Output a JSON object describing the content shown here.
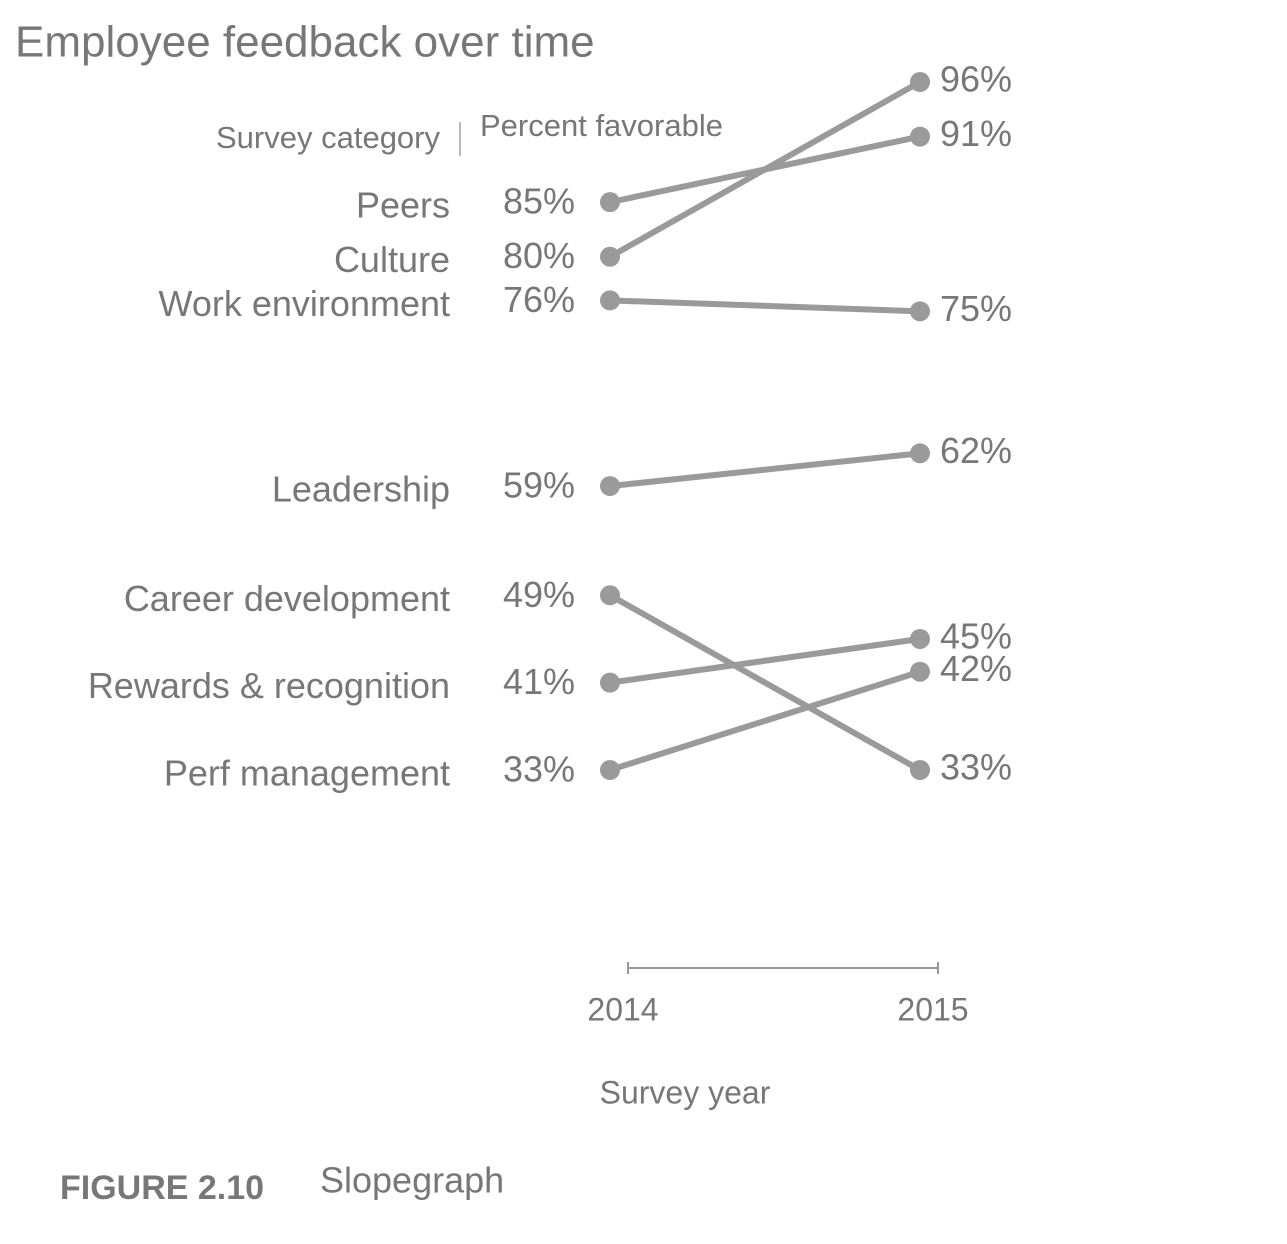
{
  "chart_data": {
    "type": "slope",
    "title": "Employee feedback over time",
    "subtitle_left": "Survey category",
    "subtitle_right": "Percent favorable",
    "x_label": "Survey year",
    "categories": [
      "2014",
      "2015"
    ],
    "color": "#9a9a9a",
    "series": [
      {
        "name": "Peers",
        "values": [
          85,
          91
        ],
        "value_labels": [
          "85%",
          "91%"
        ]
      },
      {
        "name": "Culture",
        "values": [
          80,
          96
        ],
        "value_labels": [
          "80%",
          "96%"
        ]
      },
      {
        "name": "Work environment",
        "values": [
          76,
          75
        ],
        "value_labels": [
          "76%",
          "75%"
        ]
      },
      {
        "name": "Leadership",
        "values": [
          59,
          62
        ],
        "value_labels": [
          "59%",
          "62%"
        ]
      },
      {
        "name": "Career development",
        "values": [
          49,
          33
        ],
        "value_labels": [
          "49%",
          "33%"
        ]
      },
      {
        "name": "Rewards & recognition",
        "values": [
          41,
          45
        ],
        "value_labels": [
          "41%",
          "45%"
        ]
      },
      {
        "name": "Perf management",
        "values": [
          33,
          42
        ],
        "value_labels": [
          "33%",
          "42%"
        ]
      }
    ]
  },
  "figure": {
    "number": "FIGURE 2.10",
    "caption": "Slopegraph"
  }
}
